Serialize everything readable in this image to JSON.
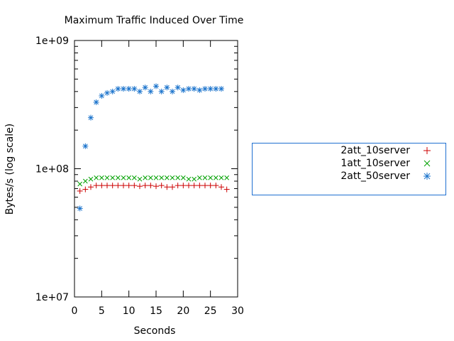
{
  "chart_data": {
    "type": "scatter",
    "title": "Maximum Traffic Induced Over Time",
    "xlabel": "Seconds",
    "ylabel": "Bytes/s (log scale)",
    "xlim": [
      0,
      30
    ],
    "ylim": [
      10000000,
      1000000000
    ],
    "yscale": "log",
    "x_ticks": [
      "0",
      "5",
      "10",
      "15",
      "20",
      "25",
      "30"
    ],
    "y_ticks": [
      "1e+07",
      "1e+08",
      "1e+09"
    ],
    "grid": false,
    "legend_position": "right",
    "series": [
      {
        "name": "2att_10server",
        "color": "#cc0000",
        "marker": "plus",
        "x": [
          1,
          2,
          3,
          4,
          5,
          6,
          7,
          8,
          9,
          10,
          11,
          12,
          13,
          14,
          15,
          16,
          17,
          18,
          19,
          20,
          21,
          22,
          23,
          24,
          25,
          26,
          27,
          28
        ],
        "y": [
          67000000,
          69000000,
          72000000,
          74000000,
          74000000,
          74000000,
          74000000,
          74000000,
          74000000,
          74000000,
          74000000,
          73000000,
          74000000,
          74000000,
          73000000,
          74000000,
          72000000,
          72000000,
          74000000,
          74000000,
          74000000,
          74000000,
          74000000,
          74000000,
          74000000,
          74000000,
          72000000,
          69000000
        ]
      },
      {
        "name": "1att_10server",
        "color": "#00a000",
        "marker": "cross",
        "x": [
          1,
          2,
          3,
          4,
          5,
          6,
          7,
          8,
          9,
          10,
          11,
          12,
          13,
          14,
          15,
          16,
          17,
          18,
          19,
          20,
          21,
          22,
          23,
          24,
          25,
          26,
          27,
          28
        ],
        "y": [
          76000000,
          80000000,
          83000000,
          85000000,
          85000000,
          85000000,
          85000000,
          85000000,
          85000000,
          85000000,
          85000000,
          83000000,
          85000000,
          85000000,
          85000000,
          85000000,
          85000000,
          85000000,
          85000000,
          85000000,
          83000000,
          83000000,
          85000000,
          85000000,
          85000000,
          85000000,
          85000000,
          85000000
        ]
      },
      {
        "name": "2att_50server",
        "color": "#1a73cc",
        "marker": "star",
        "x": [
          1,
          2,
          3,
          4,
          5,
          6,
          7,
          8,
          9,
          10,
          11,
          12,
          13,
          14,
          15,
          16,
          17,
          18,
          19,
          20,
          21,
          22,
          23,
          24,
          25,
          26,
          27
        ],
        "y": [
          49000000,
          150000000,
          250000000,
          330000000,
          370000000,
          390000000,
          400000000,
          420000000,
          420000000,
          420000000,
          420000000,
          400000000,
          430000000,
          400000000,
          440000000,
          400000000,
          430000000,
          400000000,
          430000000,
          410000000,
          420000000,
          420000000,
          410000000,
          420000000,
          420000000,
          420000000,
          420000000
        ]
      }
    ]
  }
}
